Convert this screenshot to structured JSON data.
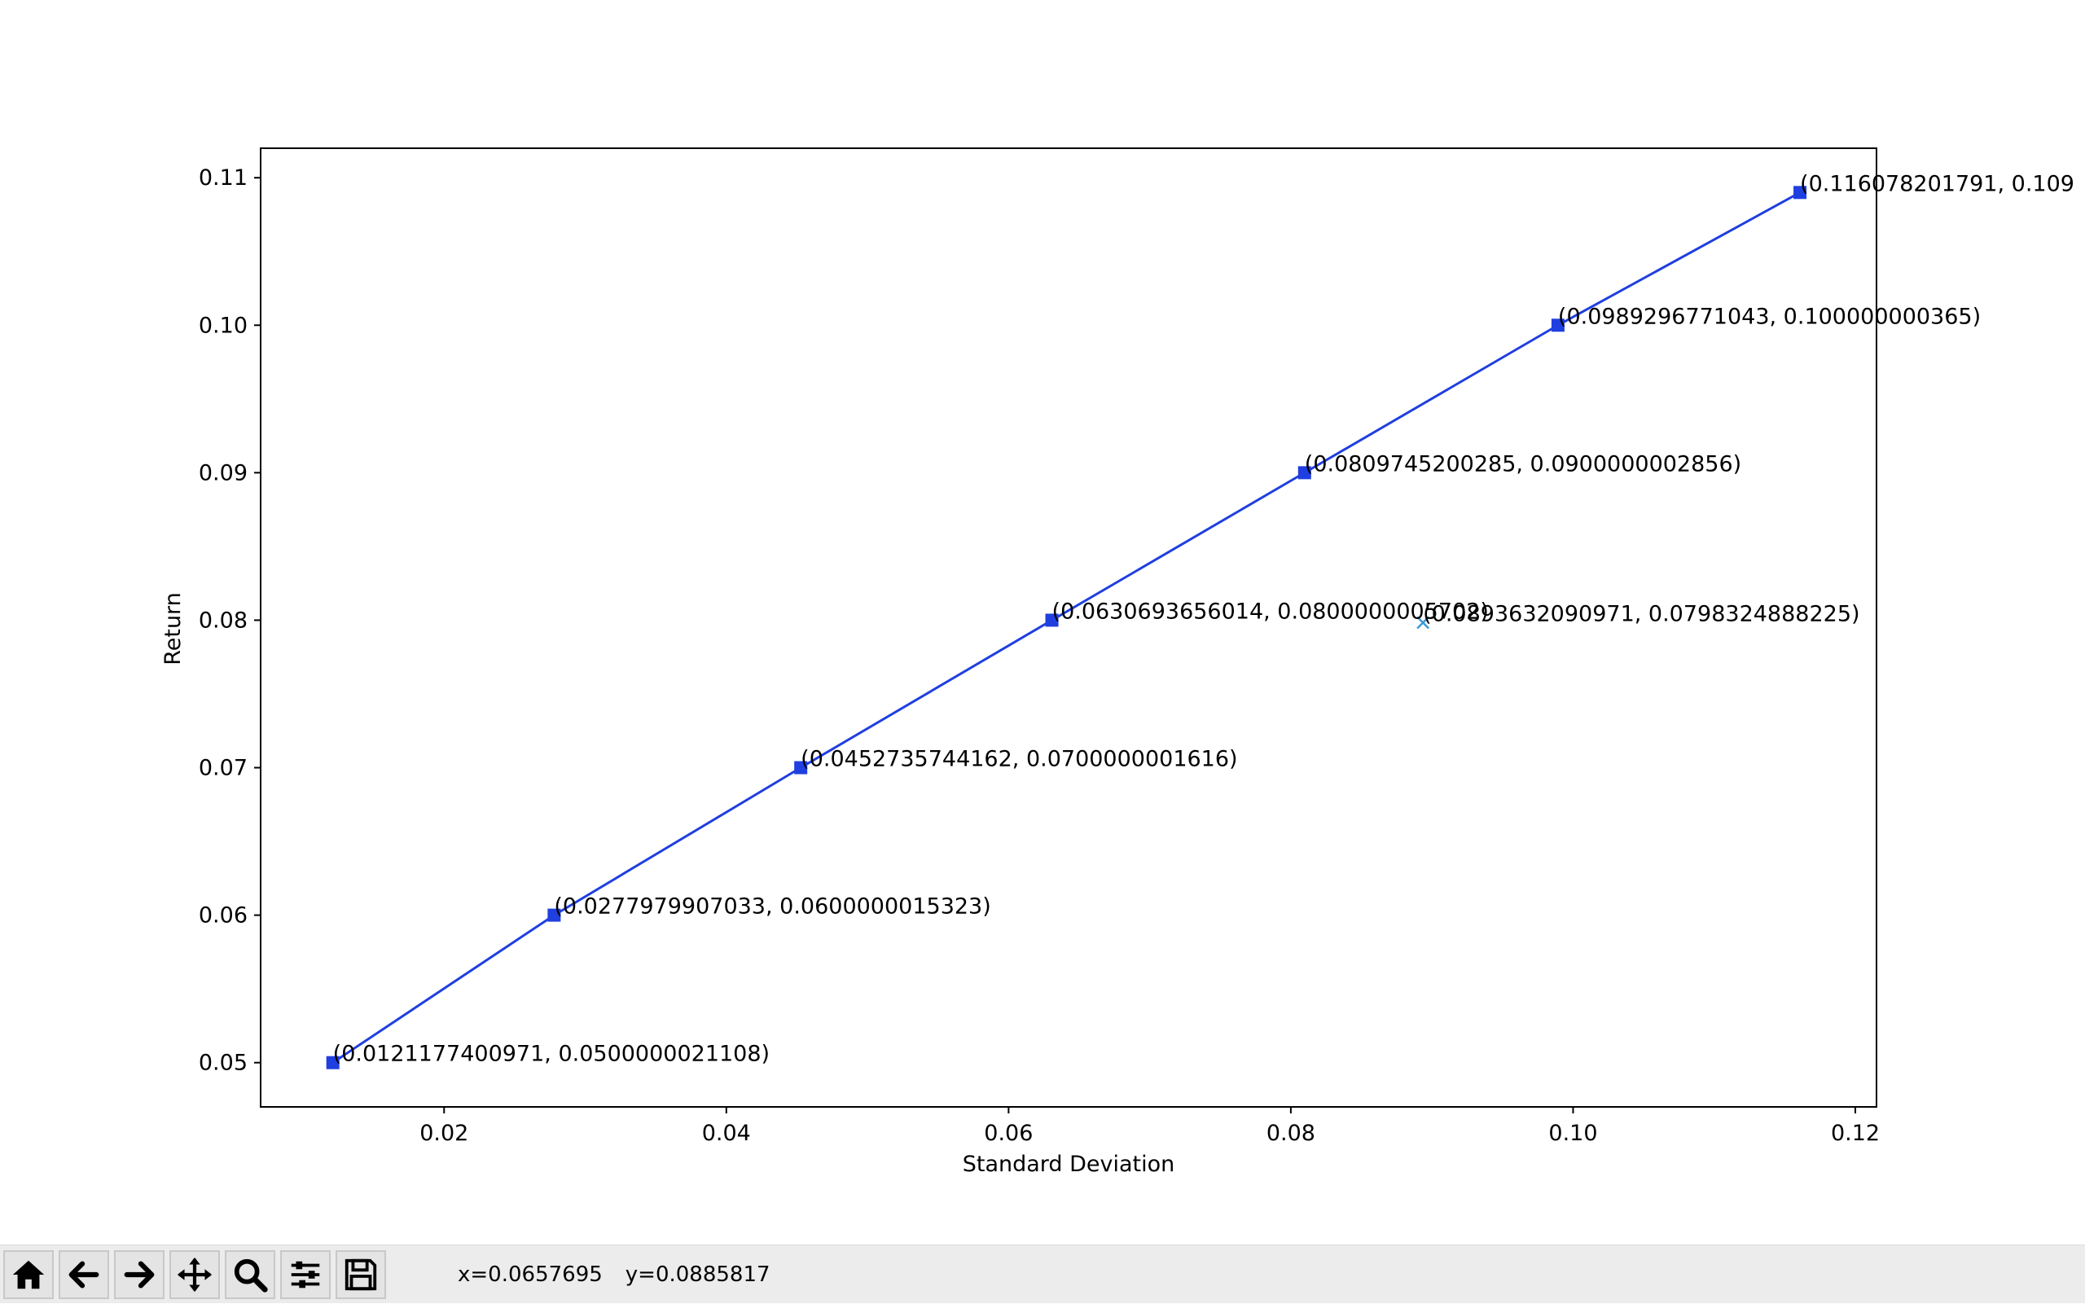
{
  "chart_data": {
    "type": "line",
    "xlabel": "Standard Deviation",
    "ylabel": "Return",
    "xlim": [
      0.007,
      0.1215
    ],
    "ylim": [
      0.047,
      0.112
    ],
    "xticks": [
      0.02,
      0.04,
      0.06,
      0.08,
      0.1,
      0.12
    ],
    "xtick_labels": [
      "0.02",
      "0.04",
      "0.06",
      "0.08",
      "0.10",
      "0.12"
    ],
    "yticks": [
      0.05,
      0.06,
      0.07,
      0.08,
      0.09,
      0.1,
      0.11
    ],
    "ytick_labels": [
      "0.05",
      "0.06",
      "0.07",
      "0.08",
      "0.09",
      "0.10",
      "0.11"
    ],
    "grid": false,
    "series": [
      {
        "color": "#1f3fe0",
        "marker": "square",
        "points": [
          {
            "x": 0.0121177400971,
            "y": 0.0500000021108,
            "label": "(0.0121177400971, 0.0500000021108)"
          },
          {
            "x": 0.0277979907033,
            "y": 0.0600000015323,
            "label": "(0.0277979907033, 0.0600000015323)"
          },
          {
            "x": 0.0452735744162,
            "y": 0.0700000001616,
            "label": "(0.0452735744162, 0.0700000001616)"
          },
          {
            "x": 0.0630693656014,
            "y": 0.0800000005702,
            "label": "(0.0630693656014, 0.0800000005702)"
          },
          {
            "x": 0.0809745200285,
            "y": 0.0900000002856,
            "label": "(0.0809745200285, 0.0900000002856)"
          },
          {
            "x": 0.0989296771043,
            "y": 0.100000000365,
            "label": "(0.0989296771043, 0.100000000365)"
          },
          {
            "x": 0.116078201791,
            "y": 0.109,
            "label": "(0.116078201791, 0.109"
          }
        ]
      },
      {
        "color": "#3a9ad9",
        "marker": "x",
        "points": [
          {
            "x": 0.0893632090971,
            "y": 0.0798324888225,
            "label": "(0.0893632090971, 0.0798324888225)"
          }
        ]
      }
    ]
  },
  "toolbar": {
    "buttons": [
      {
        "icon": "home-icon"
      },
      {
        "icon": "back-arrow-icon"
      },
      {
        "icon": "forward-arrow-icon"
      },
      {
        "icon": "pan-move-icon"
      },
      {
        "icon": "zoom-magnifier-icon"
      },
      {
        "icon": "subplots-config-icon"
      },
      {
        "icon": "save-floppy-icon"
      }
    ],
    "x_readout": "x=0.0657695",
    "y_readout": "y=0.0885817"
  }
}
